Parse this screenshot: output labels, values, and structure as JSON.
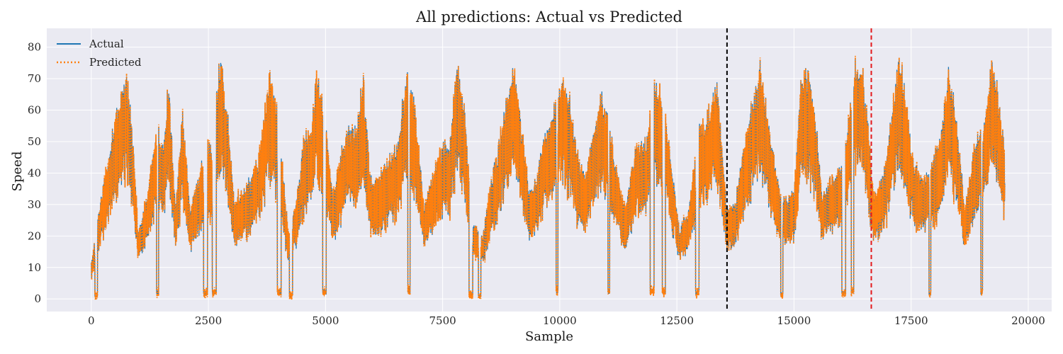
{
  "chart_data": {
    "type": "line",
    "title": "All predictions: Actual vs Predicted",
    "xlabel": "Sample",
    "ylabel": "Speed",
    "xlim": [
      -950,
      20500
    ],
    "ylim": [
      -4,
      86
    ],
    "xticks": [
      0,
      2500,
      5000,
      7500,
      10000,
      12500,
      15000,
      17500,
      20000
    ],
    "yticks": [
      0,
      10,
      20,
      30,
      40,
      50,
      60,
      70,
      80
    ],
    "grid": true,
    "legend_position": "top-left",
    "n_samples": 19500,
    "vlines": [
      {
        "x": 13570,
        "color": "#000000",
        "style": "dashed"
      },
      {
        "x": 16650,
        "color": "#e31a1c",
        "style": "dashed"
      }
    ],
    "series": [
      {
        "name": "Actual",
        "color": "#1f77b4",
        "style": "solid",
        "envelope": [
          {
            "x": 0,
            "y": 12
          },
          {
            "x": 150,
            "y": 28
          },
          {
            "x": 300,
            "y": 42
          },
          {
            "x": 450,
            "y": 55
          },
          {
            "x": 600,
            "y": 65
          },
          {
            "x": 750,
            "y": 76
          },
          {
            "x": 900,
            "y": 52
          },
          {
            "x": 1000,
            "y": 22
          },
          {
            "x": 1200,
            "y": 35
          },
          {
            "x": 1400,
            "y": 57
          },
          {
            "x": 1550,
            "y": 50
          },
          {
            "x": 1650,
            "y": 72
          },
          {
            "x": 1800,
            "y": 30
          },
          {
            "x": 1950,
            "y": 62
          },
          {
            "x": 2100,
            "y": 30
          },
          {
            "x": 2300,
            "y": 40
          },
          {
            "x": 2450,
            "y": 52
          },
          {
            "x": 2600,
            "y": 48
          },
          {
            "x": 2700,
            "y": 74
          },
          {
            "x": 2770,
            "y": 78
          },
          {
            "x": 2900,
            "y": 63
          },
          {
            "x": 3050,
            "y": 33
          },
          {
            "x": 3200,
            "y": 35
          },
          {
            "x": 3400,
            "y": 40
          },
          {
            "x": 3600,
            "y": 50
          },
          {
            "x": 3800,
            "y": 74
          },
          {
            "x": 4000,
            "y": 61
          },
          {
            "x": 4200,
            "y": 22
          },
          {
            "x": 4400,
            "y": 35
          },
          {
            "x": 4550,
            "y": 55
          },
          {
            "x": 4700,
            "y": 56
          },
          {
            "x": 4800,
            "y": 76
          },
          {
            "x": 4950,
            "y": 65
          },
          {
            "x": 5150,
            "y": 35
          },
          {
            "x": 5300,
            "y": 45
          },
          {
            "x": 5450,
            "y": 58
          },
          {
            "x": 5650,
            "y": 55
          },
          {
            "x": 5800,
            "y": 74
          },
          {
            "x": 5950,
            "y": 40
          },
          {
            "x": 6150,
            "y": 40
          },
          {
            "x": 6300,
            "y": 45
          },
          {
            "x": 6500,
            "y": 50
          },
          {
            "x": 6650,
            "y": 65
          },
          {
            "x": 6750,
            "y": 73
          },
          {
            "x": 6900,
            "y": 64
          },
          {
            "x": 7100,
            "y": 30
          },
          {
            "x": 7300,
            "y": 42
          },
          {
            "x": 7500,
            "y": 52
          },
          {
            "x": 7650,
            "y": 50
          },
          {
            "x": 7800,
            "y": 79
          },
          {
            "x": 7950,
            "y": 64
          },
          {
            "x": 8150,
            "y": 25
          },
          {
            "x": 8350,
            "y": 20
          },
          {
            "x": 8550,
            "y": 40
          },
          {
            "x": 8750,
            "y": 55
          },
          {
            "x": 8900,
            "y": 70
          },
          {
            "x": 9000,
            "y": 77
          },
          {
            "x": 9150,
            "y": 63
          },
          {
            "x": 9350,
            "y": 35
          },
          {
            "x": 9500,
            "y": 40
          },
          {
            "x": 9700,
            "y": 55
          },
          {
            "x": 9850,
            "y": 60
          },
          {
            "x": 10000,
            "y": 74
          },
          {
            "x": 10200,
            "y": 67
          },
          {
            "x": 10350,
            "y": 49
          },
          {
            "x": 10550,
            "y": 40
          },
          {
            "x": 10700,
            "y": 55
          },
          {
            "x": 10900,
            "y": 68
          },
          {
            "x": 11050,
            "y": 58
          },
          {
            "x": 11250,
            "y": 40
          },
          {
            "x": 11400,
            "y": 30
          },
          {
            "x": 11600,
            "y": 50
          },
          {
            "x": 11850,
            "y": 52
          },
          {
            "x": 12000,
            "y": 72
          },
          {
            "x": 12150,
            "y": 70
          },
          {
            "x": 12300,
            "y": 55
          },
          {
            "x": 12550,
            "y": 23
          },
          {
            "x": 12750,
            "y": 30
          },
          {
            "x": 12950,
            "y": 55
          },
          {
            "x": 13150,
            "y": 60
          },
          {
            "x": 13350,
            "y": 72
          },
          {
            "x": 13570,
            "y": 30
          },
          {
            "x": 13750,
            "y": 32
          },
          {
            "x": 13950,
            "y": 54
          },
          {
            "x": 14150,
            "y": 67
          },
          {
            "x": 14300,
            "y": 78
          },
          {
            "x": 14450,
            "y": 58
          },
          {
            "x": 14650,
            "y": 40
          },
          {
            "x": 14800,
            "y": 33
          },
          {
            "x": 15000,
            "y": 35
          },
          {
            "x": 15150,
            "y": 73
          },
          {
            "x": 15300,
            "y": 75
          },
          {
            "x": 15450,
            "y": 63
          },
          {
            "x": 15600,
            "y": 35
          },
          {
            "x": 15800,
            "y": 40
          },
          {
            "x": 16000,
            "y": 45
          },
          {
            "x": 16150,
            "y": 57
          },
          {
            "x": 16300,
            "y": 77
          },
          {
            "x": 16450,
            "y": 77
          },
          {
            "x": 16550,
            "y": 62
          },
          {
            "x": 16700,
            "y": 35
          },
          {
            "x": 16900,
            "y": 40
          },
          {
            "x": 17050,
            "y": 56
          },
          {
            "x": 17250,
            "y": 81
          },
          {
            "x": 17400,
            "y": 64
          },
          {
            "x": 17550,
            "y": 45
          },
          {
            "x": 17750,
            "y": 40
          },
          {
            "x": 17950,
            "y": 45
          },
          {
            "x": 18150,
            "y": 55
          },
          {
            "x": 18300,
            "y": 75
          },
          {
            "x": 18450,
            "y": 62
          },
          {
            "x": 18650,
            "y": 30
          },
          {
            "x": 18850,
            "y": 50
          },
          {
            "x": 19050,
            "y": 58
          },
          {
            "x": 19200,
            "y": 78
          },
          {
            "x": 19350,
            "y": 70
          },
          {
            "x": 19500,
            "y": 47
          }
        ]
      },
      {
        "name": "Predicted",
        "color": "#ff7f0e",
        "style": "dotted"
      }
    ]
  }
}
